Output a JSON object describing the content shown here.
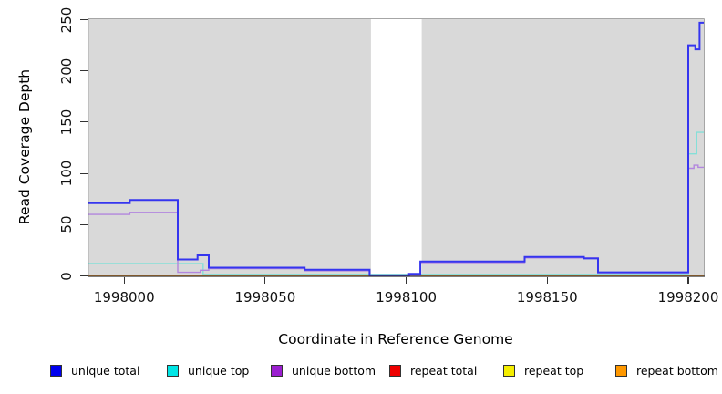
{
  "chart_data": {
    "type": "line",
    "title": "",
    "xlabel": "Coordinate in Reference Genome",
    "ylabel": "Read Coverage Depth",
    "xlim": [
      1997987,
      1998205.5
    ],
    "ylim": [
      0,
      250
    ],
    "x_ticks": [
      "1998000",
      "1998050",
      "1998100",
      "1998150",
      "1998200"
    ],
    "x_tick_values": [
      1998000,
      1998050,
      1998100,
      1998150,
      1998200
    ],
    "y_ticks": [
      "0",
      "50",
      "100",
      "150",
      "200",
      "250"
    ],
    "y_tick_values": [
      0,
      50,
      100,
      150,
      200,
      250
    ],
    "panel_bg": "#d9d9d9",
    "gap_region": {
      "x_start": 1998087.5,
      "x_end": 1998105.5,
      "color": "#ffffff"
    },
    "legend_position": "bottom",
    "series": [
      {
        "name": "unique total",
        "legend_color": "#0000ee",
        "line_color": "#3535ef",
        "line_width": 2,
        "points": [
          [
            1997987,
            71
          ],
          [
            1998002,
            71
          ],
          [
            1998002,
            74
          ],
          [
            1998019,
            74
          ],
          [
            1998019,
            16
          ],
          [
            1998026,
            16
          ],
          [
            1998026,
            20
          ],
          [
            1998030,
            20
          ],
          [
            1998030,
            8
          ],
          [
            1998064,
            8
          ],
          [
            1998064,
            6
          ],
          [
            1998087,
            6
          ],
          [
            1998087,
            0.5
          ],
          [
            1998101,
            0.5
          ],
          [
            1998101,
            2
          ],
          [
            1998105,
            2
          ],
          [
            1998105,
            14
          ],
          [
            1998142,
            14
          ],
          [
            1998142,
            18.5
          ],
          [
            1998163,
            18.5
          ],
          [
            1998163,
            17
          ],
          [
            1998168,
            17
          ],
          [
            1998168,
            3.5
          ],
          [
            1998200,
            3.5
          ],
          [
            1998200,
            225
          ],
          [
            1998202.5,
            225
          ],
          [
            1998202.5,
            221
          ],
          [
            1998204,
            221
          ],
          [
            1998204,
            247
          ],
          [
            1998205.5,
            247
          ]
        ]
      },
      {
        "name": "unique top",
        "legend_color": "#00e5e5",
        "line_color": "#85dfd8",
        "line_width": 1.4,
        "points": [
          [
            1997987,
            12
          ],
          [
            1998028,
            12
          ],
          [
            1998028,
            1.5
          ],
          [
            1998200,
            1.5
          ],
          [
            1998200,
            119
          ],
          [
            1998203,
            119
          ],
          [
            1998203,
            140
          ],
          [
            1998205.5,
            140
          ]
        ]
      },
      {
        "name": "unique bottom",
        "legend_color": "#9b1fd0",
        "line_color": "#b286de",
        "line_width": 1.4,
        "points": [
          [
            1997987,
            60
          ],
          [
            1998002,
            60
          ],
          [
            1998002,
            62
          ],
          [
            1998019,
            62
          ],
          [
            1998019,
            3.5
          ],
          [
            1998027,
            3.5
          ],
          [
            1998027,
            5.5
          ],
          [
            1998030,
            5.5
          ],
          [
            1998030,
            7
          ],
          [
            1998064,
            7
          ],
          [
            1998064,
            5
          ],
          [
            1998087,
            5
          ],
          [
            1998087,
            0.3
          ],
          [
            1998105,
            0.3
          ],
          [
            1998105,
            13
          ],
          [
            1998142,
            13
          ],
          [
            1998142,
            17.5
          ],
          [
            1998168,
            17.5
          ],
          [
            1998168,
            3
          ],
          [
            1998200,
            3
          ],
          [
            1998200,
            105
          ],
          [
            1998202,
            105
          ],
          [
            1998202,
            108
          ],
          [
            1998203.5,
            108
          ],
          [
            1998203.5,
            106
          ],
          [
            1998205.5,
            106
          ]
        ]
      },
      {
        "name": "repeat total",
        "legend_color": "#ee0000",
        "line_color": "#ee3333",
        "line_width": 1.4,
        "points": [
          [
            1997987,
            0
          ],
          [
            1998018,
            0
          ],
          [
            1998018,
            0.6
          ],
          [
            1998030,
            0.6
          ],
          [
            1998030,
            0
          ],
          [
            1998205.5,
            0
          ]
        ]
      },
      {
        "name": "repeat top",
        "legend_color": "#f5ee00",
        "line_color": "#f5ee00",
        "line_width": 1.4,
        "points": [
          [
            1997987,
            0
          ],
          [
            1998205.5,
            0
          ]
        ]
      },
      {
        "name": "repeat bottom",
        "legend_color": "#ff9800",
        "line_color": "#ff9820",
        "line_width": 1.6,
        "points": [
          [
            1997987,
            0
          ],
          [
            1998205.5,
            0
          ]
        ]
      }
    ]
  }
}
